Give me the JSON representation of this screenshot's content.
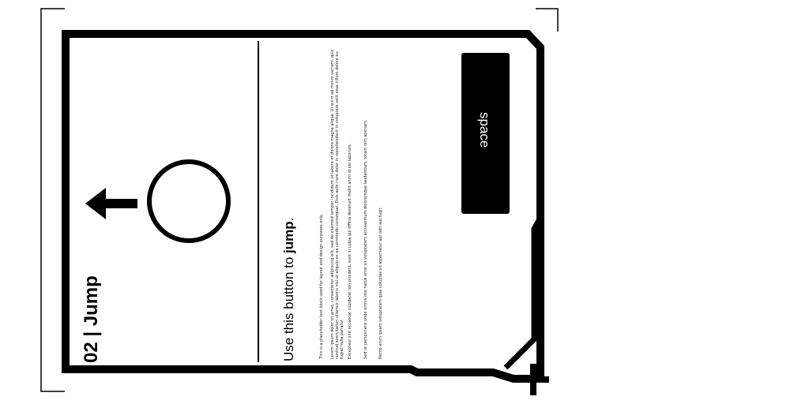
{
  "card": {
    "title": "02 | Jump",
    "instruction_prefix": "Use this button to ",
    "instruction_action": "jump",
    "instruction_suffix": ".",
    "key_label": "space",
    "direction_icon": "left-arrow-icon",
    "button_icon": "circle-button-icon",
    "fine_print": [
      "This is a placeholder text block used for layout and design purposes only.",
      "Lorem ipsum dolor sit amet, consectetur adipiscing elit, sed do eiusmod tempor incididunt ut labore et dolore magna aliqua. Ut enim ad minim veniam, quis nostrud exercitation ullamco laboris nisi ut aliquip ex ea commodo consequat. Duis aute irure dolor in reprehenderit in voluptate velit esse cillum dolore eu fugiat nulla pariatur.",
      "Excepteur sint occaecat cupidatat non proident, sunt in culpa qui officia deserunt mollit anim id est laborum.",
      "Sed ut perspiciatis unde omnis iste natus error sit voluptatem accusantium doloremque laudantium, totam rem aperiam.",
      "Nemo enim ipsam voluptatem quia voluptas sit aspernatur aut odit aut fugit."
    ]
  }
}
